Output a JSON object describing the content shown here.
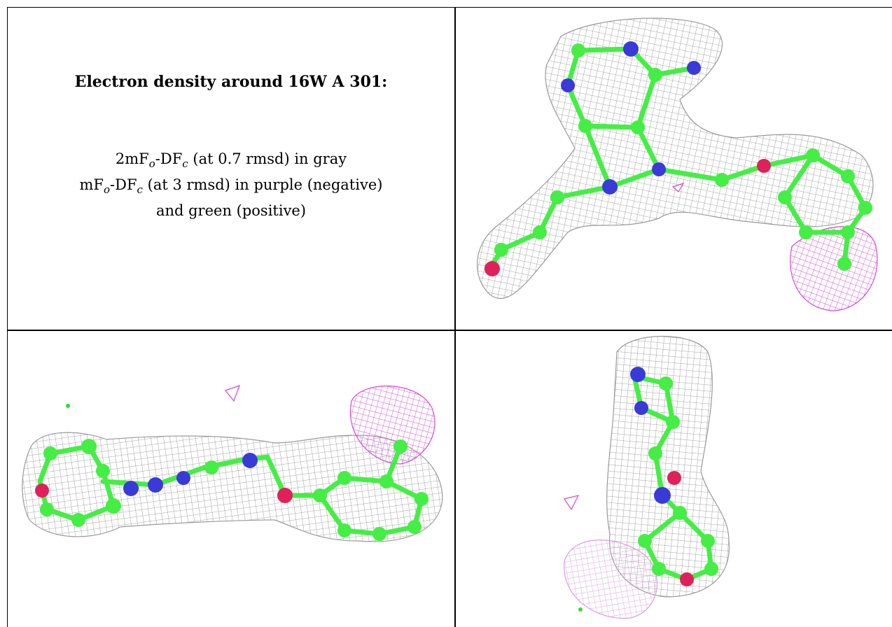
{
  "caption": {
    "title": "Electron density around 16W A 301:",
    "line1": {
      "a": "2mF",
      "o": "o",
      "b": "-DF",
      "c": "c",
      "rest": " (at 0.7 rmsd) in gray"
    },
    "line2": {
      "a": "mF",
      "o": "o",
      "b": "-DF",
      "c": "c",
      "rest": " (at 3 rmsd) in purple (negative)"
    },
    "line3": "and green (positive)"
  },
  "colors": {
    "mesh_2fofc": "#8a8a8a",
    "mesh_negative": "#d24ad8",
    "mesh_positive": "#33dd33",
    "carbon": "#44ee44",
    "nitrogen": "#3a3ad8",
    "oxygen": "#e0205a"
  },
  "panels": [
    {
      "name": "view-1",
      "icon": "electron-density-view-1-icon"
    },
    {
      "name": "view-2",
      "icon": "electron-density-view-2-icon"
    },
    {
      "name": "view-3",
      "icon": "electron-density-view-3-icon"
    }
  ]
}
